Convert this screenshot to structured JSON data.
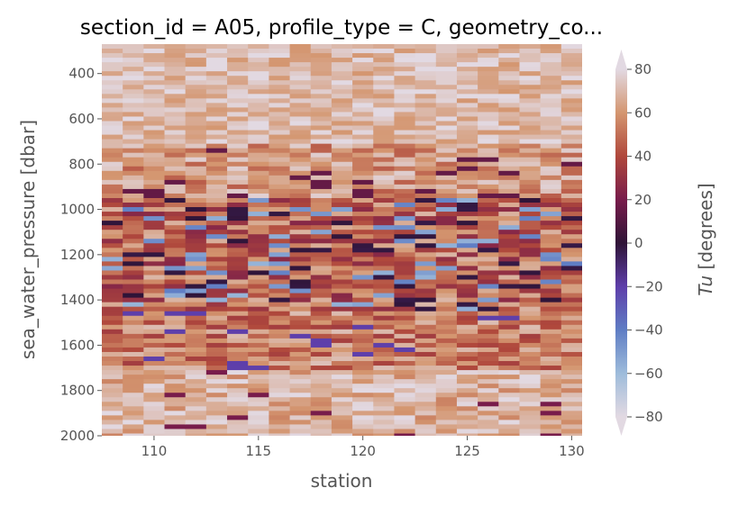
{
  "chart_data": {
    "type": "heatmap",
    "title": "section_id = A05, profile_type = C, geometry_co...",
    "xlabel": "station",
    "ylabel": "sea_water_pressure [dbar]",
    "colorbar_label_italic": "Tu",
    "colorbar_label_rest": " [degrees]",
    "x_range": [
      107.5,
      130.5
    ],
    "y_range": [
      270,
      2000
    ],
    "y_inverted": true,
    "x_ticks": [
      110,
      115,
      120,
      125,
      130
    ],
    "x_tick_labels": [
      "110",
      "115",
      "120",
      "125",
      "130"
    ],
    "y_ticks": [
      400,
      600,
      800,
      1000,
      1200,
      1400,
      1600,
      1800,
      2000
    ],
    "y_tick_labels": [
      "400",
      "600",
      "800",
      "1000",
      "1200",
      "1400",
      "1600",
      "1800",
      "2000"
    ],
    "colorbar_range": [
      -80,
      80
    ],
    "colorbar_ticks": [
      80,
      60,
      40,
      20,
      0,
      -20,
      -40,
      -60,
      -80
    ],
    "colorbar_tick_labels": [
      "80",
      "60",
      "40",
      "20",
      "0",
      "−20",
      "−40",
      "−60",
      "−80"
    ],
    "colorbar_extend": "both",
    "colormap": "twilight",
    "stations": [
      108,
      109,
      110,
      111,
      112,
      113,
      114,
      115,
      116,
      117,
      118,
      119,
      120,
      121,
      122,
      123,
      124,
      125,
      126,
      127,
      128,
      129,
      130
    ],
    "grid": false,
    "background": "#e5e5e5"
  }
}
